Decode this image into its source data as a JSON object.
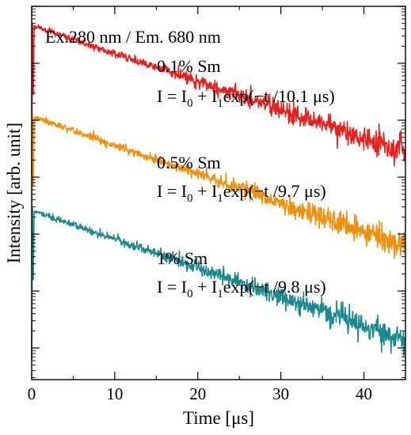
{
  "chart_data": {
    "type": "line",
    "title": "",
    "xlabel": "Time [μs]",
    "ylabel": "Intensity [arb. unit]",
    "xlim": [
      0,
      45
    ],
    "y_scale": "log",
    "y_ticks_labeled": false,
    "x_ticks": [
      0,
      10,
      20,
      30,
      40
    ],
    "x_tick_labels": [
      "0",
      "10",
      "20",
      "30",
      "40"
    ],
    "grid": false,
    "legend": "none",
    "conditions": "Ex.280 nm / Em. 680 nm",
    "series": [
      {
        "name": "0.1% Sm",
        "fit": {
          "prefix": "I = I",
          "sub0": "0",
          "mid": " + I",
          "sub1": "1",
          "suffix": "exp(−t /10.1 μs)"
        },
        "tau_us": 10.1,
        "color": "#e8201c",
        "start_time_us": 0.3,
        "start_decades": 0.35,
        "end_decades": 2.55
      },
      {
        "name": "0.5% Sm",
        "fit": {
          "prefix": "I = I",
          "sub0": "0",
          "mid": " + I",
          "sub1": "1",
          "suffix": "exp(−t /9.7 μs)"
        },
        "tau_us": 9.7,
        "color": "#f0900c",
        "start_time_us": 0.3,
        "start_decades": 1.95,
        "end_decades": 4.2
      },
      {
        "name": "1% Sm",
        "fit": {
          "prefix": "I = I",
          "sub0": "0",
          "mid": " + I",
          "sub1": "1",
          "suffix": "exp(−t /9.8 μs)"
        },
        "tau_us": 9.8,
        "color": "#1a8a8e",
        "start_time_us": 0.3,
        "start_decades": 3.6,
        "end_decades": 5.85
      }
    ]
  },
  "colors": {
    "axis": "#000000",
    "background": "#ffffff"
  }
}
